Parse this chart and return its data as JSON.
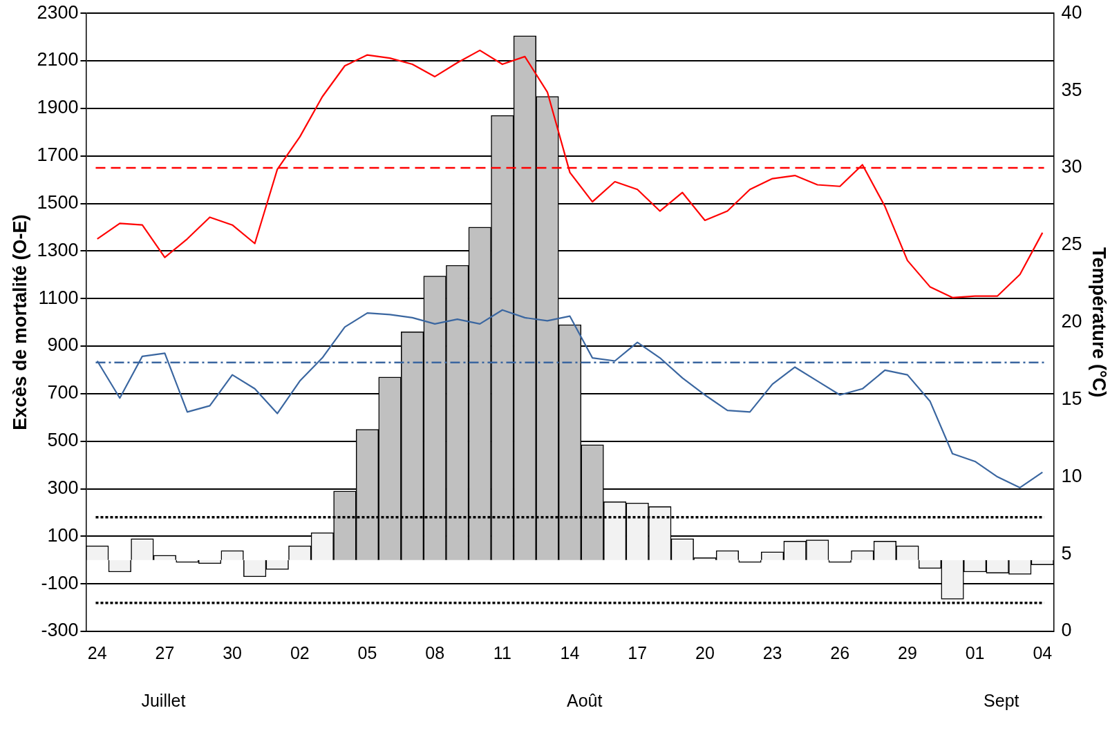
{
  "chart_data": {
    "type": "bar",
    "ylabel": "Excès de mortalité (O-E)",
    "y2label": "Température (°C)",
    "categories": [
      "24",
      null,
      null,
      "27",
      null,
      null,
      "30",
      null,
      null,
      "02",
      null,
      null,
      "05",
      null,
      null,
      "08",
      null,
      null,
      "11",
      null,
      null,
      "14",
      null,
      null,
      "17",
      null,
      null,
      "20",
      null,
      null,
      "23",
      null,
      null,
      "26",
      null,
      null,
      "29",
      null,
      null,
      "01",
      null,
      null,
      "04"
    ],
    "series": [
      {
        "colors": [
          "#f2f2f2",
          "#f2f2f2",
          "#f2f2f2",
          "#f2f2f2",
          "#f2f2f2",
          "#f2f2f2",
          "#f2f2f2",
          "#f2f2f2",
          "#f2f2f2",
          "#f2f2f2",
          "#f2f2f2",
          "#c0c0c0",
          "#c0c0c0",
          "#c0c0c0",
          "#c0c0c0",
          "#c0c0c0",
          "#c0c0c0",
          "#c0c0c0",
          "#c0c0c0",
          "#c0c0c0",
          "#c0c0c0",
          "#c0c0c0",
          "#c0c0c0",
          "#f2f2f2",
          "#f2f2f2",
          "#f2f2f2",
          "#f2f2f2",
          "#f2f2f2",
          "#f2f2f2",
          "#f2f2f2",
          "#f2f2f2",
          "#f2f2f2",
          "#f2f2f2",
          "#f2f2f2",
          "#f2f2f2",
          "#f2f2f2",
          "#f2f2f2",
          "#f2f2f2",
          "#f2f2f2",
          "#f2f2f2",
          "#f2f2f2",
          "#f2f2f2",
          "#f2f2f2"
        ],
        "values": [
          60,
          -50,
          90,
          20,
          -10,
          -15,
          40,
          -70,
          -40,
          60,
          115,
          290,
          550,
          770,
          960,
          1195,
          1240,
          1400,
          1870,
          2205,
          1950,
          990,
          485,
          245,
          240,
          225,
          90,
          10,
          40,
          -10,
          35,
          80,
          85,
          -10,
          40,
          80,
          60,
          -35,
          -165,
          -50,
          -55,
          -60,
          -20
        ]
      },
      {
        "type": "line",
        "axis": "y2",
        "color": "#ff0000",
        "values": [
          25.4,
          26.4,
          26.3,
          24.2,
          25.4,
          26.8,
          26.3,
          25.1,
          29.9,
          32.0,
          34.6,
          36.6,
          37.3,
          37.1,
          36.7,
          35.9,
          36.8,
          37.6,
          36.7,
          37.2,
          34.9,
          29.7,
          27.8,
          29.1,
          28.6,
          27.2,
          28.4,
          26.6,
          27.2,
          28.6,
          29.3,
          29.5,
          28.9,
          28.8,
          30.2,
          27.5,
          24.0,
          22.3,
          21.6,
          21.7,
          21.7,
          23.1,
          25.8
        ]
      },
      {
        "type": "line",
        "axis": "y2",
        "color": "#3a66a0",
        "values": [
          17.5,
          15.1,
          17.8,
          18.0,
          14.2,
          14.6,
          16.6,
          15.7,
          14.1,
          16.2,
          17.7,
          19.7,
          20.6,
          20.5,
          20.3,
          19.9,
          20.2,
          19.9,
          20.8,
          20.3,
          20.1,
          20.4,
          17.7,
          17.5,
          18.7,
          17.7,
          16.4,
          15.3,
          14.3,
          14.2,
          16.0,
          17.1,
          16.2,
          15.3,
          15.7,
          16.9,
          16.6,
          14.9,
          11.5,
          11.0,
          10.0,
          9.3,
          10.3
        ]
      }
    ],
    "ylim": [
      -300,
      2300
    ],
    "yticks": [
      -300,
      -100,
      100,
      300,
      500,
      700,
      900,
      1100,
      1300,
      1500,
      1700,
      1900,
      2100,
      2300
    ],
    "y2lim": [
      0,
      40
    ],
    "y2ticks": [
      0,
      5,
      10,
      15,
      20,
      25,
      30,
      35,
      40
    ],
    "ref_lines": [
      {
        "axis": "y2",
        "value": 30,
        "color": "#ff0000",
        "line_style": "dashed"
      },
      {
        "axis": "y2",
        "value": 17.4,
        "color": "#3a66a0",
        "line_style": "dashdot"
      },
      {
        "axis": "y",
        "value": 180,
        "color": "#000000",
        "line_style": "dotted"
      },
      {
        "axis": "y",
        "value": -180,
        "color": "#000000",
        "line_style": "dotted"
      }
    ],
    "annotations": [
      "Juillet",
      "Août",
      "Sept"
    ],
    "grid": "y",
    "legend": false,
    "marker": "none",
    "line_style": "solid"
  }
}
